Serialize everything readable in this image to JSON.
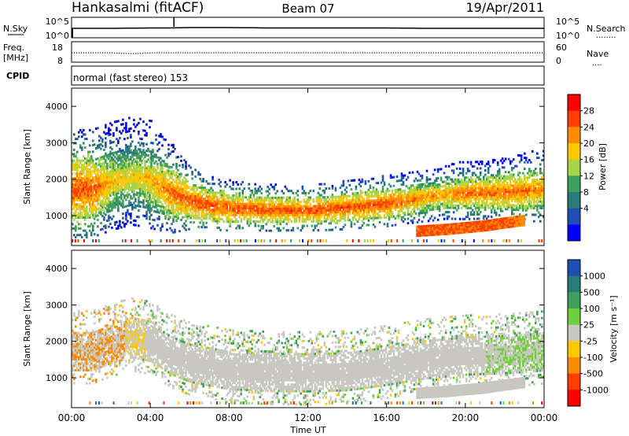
{
  "header": {
    "station": "Hankasalmi (fitACF)",
    "beam": "Beam 07",
    "date": "19/Apr/2011"
  },
  "noise_panel": {
    "left_label": "N.Sky",
    "left_ticks": [
      "10^5",
      "10^0"
    ],
    "right_ticks": [
      "10^5",
      "10^0"
    ],
    "right_label": "N.Search",
    "right_dots": "........"
  },
  "freq_panel": {
    "label_line1": "Freq.",
    "label_line2": "[MHz]",
    "left_ticks": [
      "18",
      "8"
    ],
    "right_ticks": [
      "60",
      "0"
    ],
    "right_label": "Nave",
    "right_dots": "...."
  },
  "cpid_panel": {
    "label": "CPID",
    "value": "normal (fast stereo) 153"
  },
  "axes": {
    "ylabel": "Slant Range [km]",
    "yticks": [
      "4000",
      "3000",
      "2000",
      "1000"
    ],
    "xticks": [
      "00:00",
      "04:00",
      "08:00",
      "12:00",
      "16:00",
      "20:00",
      "00:00"
    ],
    "xlabel": "Time UT"
  },
  "power_colorbar": {
    "label": "Power [dB]",
    "ticks": [
      "28",
      "24",
      "20",
      "16",
      "12",
      "8",
      "4"
    ],
    "colors": [
      "#ff0000",
      "#ff4000",
      "#ff8c00",
      "#ffc800",
      "#a6d54a",
      "#3ea05a",
      "#2b7a7a",
      "#1f4fb4",
      "#0000ff"
    ]
  },
  "velocity_colorbar": {
    "label": "Velocity [m s⁻¹]",
    "ticks": [
      "1000",
      "500",
      "100",
      "25",
      "-25",
      "-100",
      "-500",
      "-1000"
    ],
    "colors": [
      "#1f4fb4",
      "#2b7a7a",
      "#3ea05a",
      "#6fcf3a",
      "#c8c8c0",
      "#ffc800",
      "#ff8c00",
      "#ff4000",
      "#ff0000"
    ]
  },
  "chart_data": [
    {
      "type": "line",
      "title": "N.Sky",
      "x_unit": "hours UT",
      "x": [
        0,
        2,
        4,
        5,
        6,
        8,
        10,
        12,
        14,
        16,
        18,
        20,
        22,
        24
      ],
      "values": [
        2.3,
        2.3,
        2.4,
        2.4,
        2.5,
        2.5,
        2.4,
        2.4,
        2.4,
        2.4,
        2.3,
        2.3,
        2.3,
        2.3
      ],
      "ylim": [
        0,
        5
      ],
      "scale": "log10"
    },
    {
      "type": "scatter",
      "title": "Freq.",
      "x_unit": "hours UT",
      "x": [
        0,
        2,
        3,
        4,
        6,
        8,
        10,
        12,
        14,
        16,
        18,
        20,
        22,
        24
      ],
      "values": [
        12.6,
        12.6,
        12.2,
        12.6,
        12.6,
        12.6,
        12.6,
        12.6,
        12.6,
        12.6,
        12.6,
        12.6,
        12.6,
        12.6
      ],
      "ylim": [
        8,
        18
      ]
    },
    {
      "type": "heatmap",
      "title": "Power [dB]",
      "x_unit": "hours UT",
      "xlim": [
        0,
        24
      ],
      "ylim": [
        180,
        4500
      ],
      "main_echo_band": {
        "x": [
          0,
          1,
          2,
          3,
          4,
          5,
          6,
          7,
          8,
          9,
          10,
          11,
          12,
          13,
          14,
          15,
          16,
          17,
          18,
          19,
          20,
          21,
          22,
          23,
          24
        ],
        "center": [
          1700,
          1700,
          1900,
          2050,
          1950,
          1600,
          1380,
          1250,
          1180,
          1150,
          1130,
          1120,
          1120,
          1150,
          1200,
          1250,
          1300,
          1380,
          1480,
          1550,
          1580,
          1600,
          1620,
          1650,
          1700
        ],
        "width": [
          600,
          600,
          600,
          600,
          600,
          500,
          350,
          300,
          280,
          260,
          260,
          250,
          250,
          260,
          270,
          270,
          280,
          280,
          300,
          300,
          320,
          320,
          350,
          380,
          400
        ],
        "power": [
          28,
          28,
          22,
          20,
          22,
          26,
          28,
          28,
          28,
          28,
          28,
          28,
          28,
          28,
          28,
          28,
          28,
          26,
          24,
          24,
          26,
          26,
          26,
          26,
          24
        ]
      },
      "secondary_band": {
        "x": [
          17.5,
          19,
          20,
          21,
          22,
          23
        ],
        "center": [
          550,
          600,
          650,
          700,
          780,
          850
        ],
        "power": [
          28,
          28,
          28,
          28,
          28,
          26
        ]
      }
    },
    {
      "type": "heatmap",
      "title": "Velocity [m s⁻¹]",
      "x_unit": "hours UT",
      "xlim": [
        0,
        24
      ],
      "ylim": [
        180,
        4500
      ],
      "main_echo_band": {
        "x": [
          0,
          1,
          2,
          3,
          4,
          5,
          6,
          8,
          10,
          12,
          14,
          16,
          18,
          20,
          22,
          23,
          24
        ],
        "center": [
          1700,
          1700,
          1900,
          2050,
          1950,
          1600,
          1380,
          1180,
          1130,
          1120,
          1150,
          1300,
          1480,
          1580,
          1620,
          1650,
          1700
        ],
        "velocity": [
          -300,
          -200,
          -150,
          -80,
          0,
          0,
          0,
          0,
          0,
          0,
          0,
          0,
          0,
          0,
          50,
          80,
          100
        ]
      }
    }
  ]
}
